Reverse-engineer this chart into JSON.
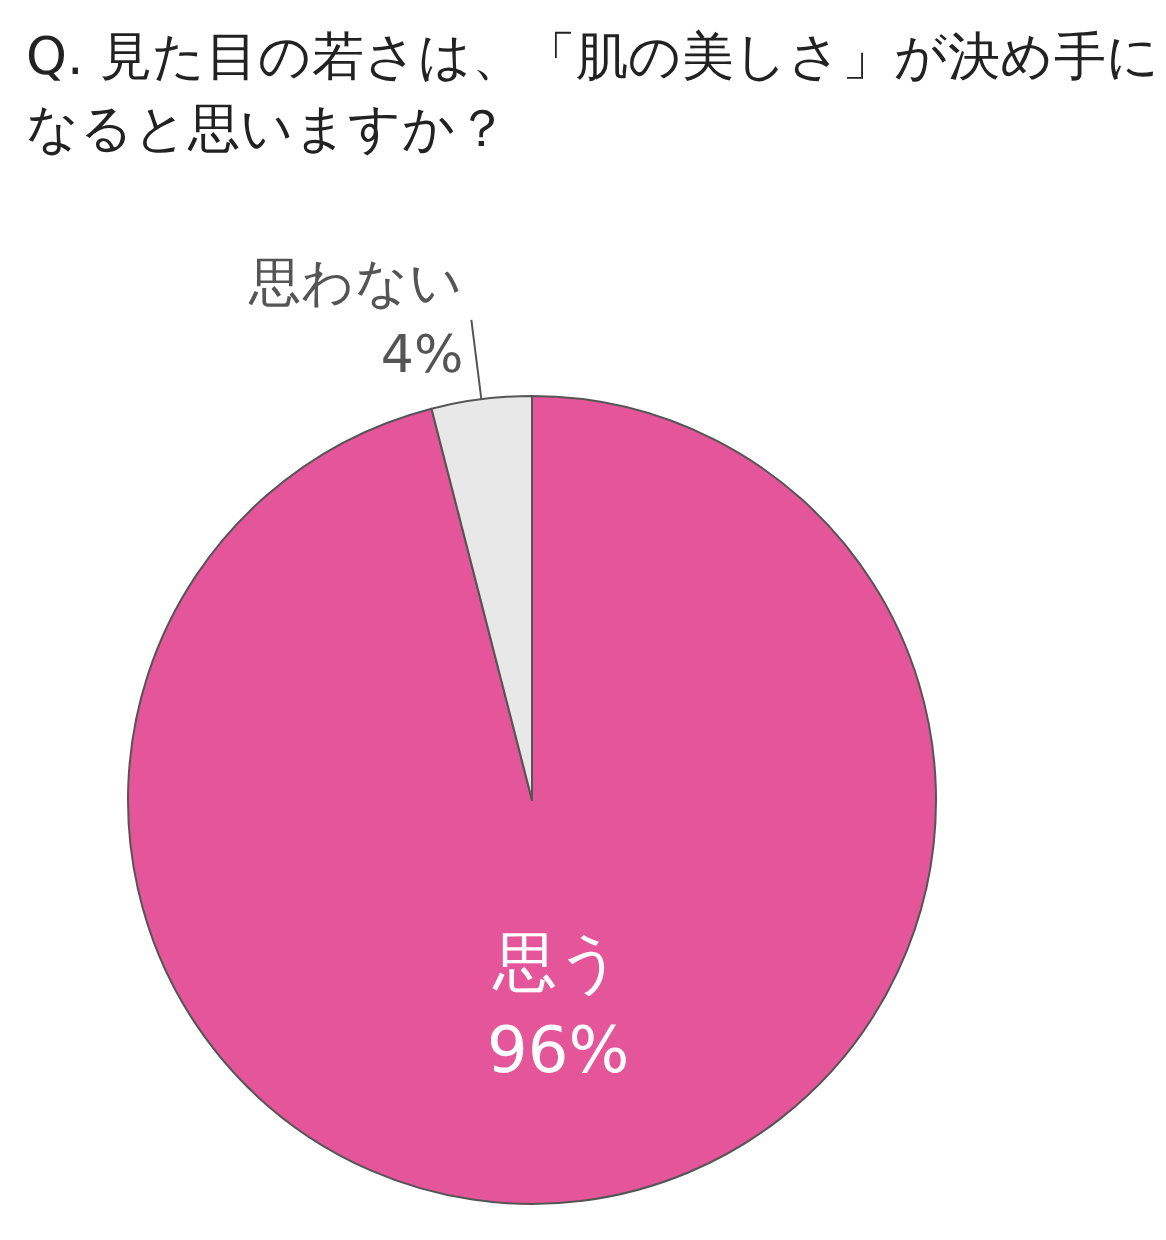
{
  "chart_data": {
    "type": "pie",
    "title": "Q. 見た目の若さは、「肌の美しさ」が決め手になると思いますか？",
    "categories": [
      "思う",
      "思わない"
    ],
    "values": [
      96,
      4
    ],
    "value_labels": [
      "96%",
      "4%"
    ],
    "colors": [
      "#e5559a",
      "#e8e8e8"
    ],
    "legend": false
  }
}
